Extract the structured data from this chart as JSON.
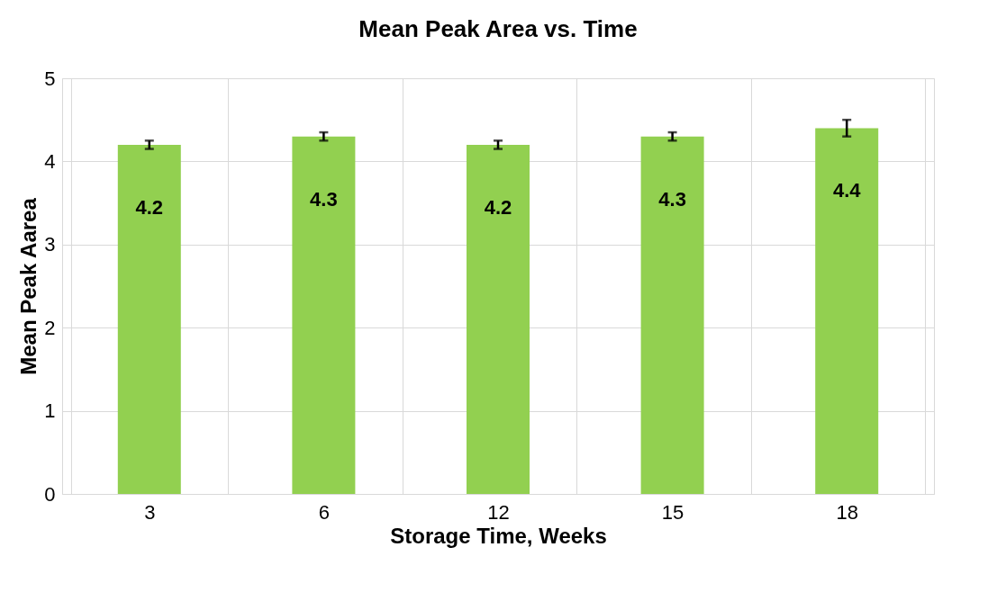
{
  "chart_data": {
    "type": "bar",
    "title": "Mean Peak Area vs. Time",
    "xlabel": "Storage Time, Weeks",
    "ylabel": "Mean Peak Aarea",
    "categories": [
      "3",
      "6",
      "12",
      "15",
      "18"
    ],
    "series": [
      {
        "color": "#92d050",
        "values": [
          4.2,
          4.3,
          4.2,
          4.3,
          4.4
        ],
        "errors": [
          0.05,
          0.05,
          0.05,
          0.05,
          0.1
        ]
      }
    ],
    "ylim": [
      0,
      5
    ],
    "yticks": [
      0,
      1,
      2,
      3,
      4,
      5
    ],
    "grid": true,
    "data_labels": true
  }
}
